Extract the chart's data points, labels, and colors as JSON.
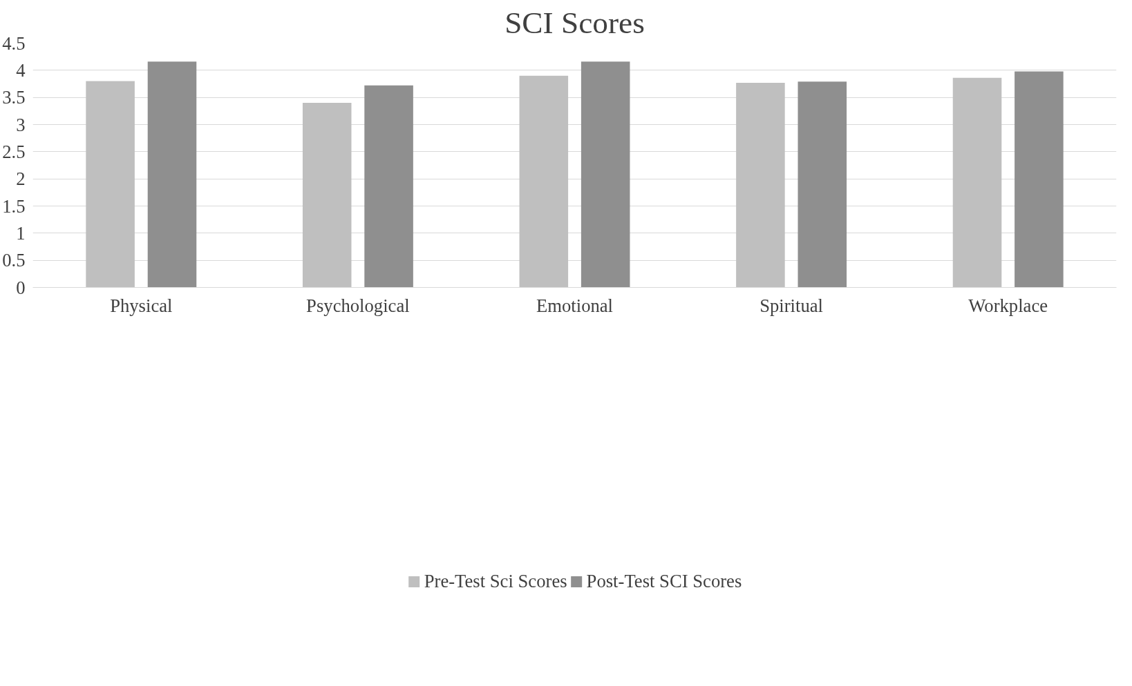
{
  "chart_data": {
    "type": "bar",
    "title": "SCI Scores",
    "categories": [
      "Physical",
      "Psychological",
      "Emotional",
      "Spiritual",
      "Workplace"
    ],
    "series": [
      {
        "name": "Pre-Test Sci Scores",
        "color": "#bfbfbf",
        "values": [
          3.8,
          3.4,
          3.9,
          3.77,
          3.86
        ]
      },
      {
        "name": "Post-Test SCI Scores",
        "color": "#8f8f8f",
        "values": [
          4.16,
          3.72,
          4.16,
          3.79,
          3.98
        ]
      }
    ],
    "ylim": [
      0,
      4.5
    ],
    "yticks": [
      0,
      0.5,
      1,
      1.5,
      2,
      2.5,
      3,
      3.5,
      4,
      4.5
    ],
    "grid": "y",
    "legend": "bottom"
  }
}
